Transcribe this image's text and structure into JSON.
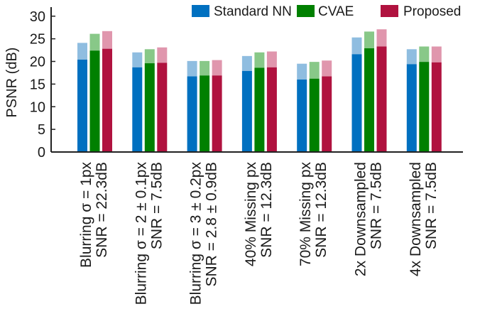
{
  "chart_data": {
    "type": "bar",
    "stacked_overlay": true,
    "ylabel": "PSNR (dB)",
    "xlabel": "",
    "ylim": [
      0,
      32
    ],
    "yticks": [
      0,
      5,
      10,
      15,
      20,
      25,
      30
    ],
    "grid": false,
    "legend_position": "top-right",
    "categories": [
      {
        "line1": "Blurring σ = 1px",
        "line2": "SNR = 22.3dB"
      },
      {
        "line1": "Blurring σ = 2 ± 0.1px",
        "line2": "SNR = 7.5dB"
      },
      {
        "line1": "Blurring σ = 3 ± 0.2px",
        "line2": "SNR = 2.8 ± 0.9dB"
      },
      {
        "line1": "40% Missing px",
        "line2": "SNR = 12.3dB"
      },
      {
        "line1": "70% Missing px",
        "line2": "SNR = 12.3dB"
      },
      {
        "line1": "2x Downsampled",
        "line2": "SNR = 7.5dB"
      },
      {
        "line1": "4x Downsampled",
        "line2": "SNR = 7.5dB"
      }
    ],
    "series": [
      {
        "name": "Standard NN",
        "color": "#0070c0",
        "light_color": "#8fbde0",
        "values": [
          20.4,
          18.7,
          16.7,
          17.9,
          16.0,
          21.6,
          19.4
        ],
        "upper_values": [
          24.1,
          22.0,
          20.1,
          21.2,
          19.5,
          25.3,
          22.7
        ]
      },
      {
        "name": "CVAE",
        "color": "#008000",
        "light_color": "#88c888",
        "values": [
          22.4,
          19.6,
          16.9,
          18.6,
          16.2,
          22.9,
          19.9
        ],
        "upper_values": [
          26.1,
          22.7,
          20.1,
          22.0,
          19.9,
          26.6,
          23.3
        ]
      },
      {
        "name": "Proposed",
        "color": "#b0123f",
        "light_color": "#e096ad",
        "values": [
          22.8,
          19.7,
          16.9,
          18.7,
          16.7,
          23.3,
          19.8
        ],
        "upper_values": [
          26.7,
          23.1,
          20.3,
          22.2,
          20.2,
          27.1,
          23.3
        ]
      }
    ]
  }
}
